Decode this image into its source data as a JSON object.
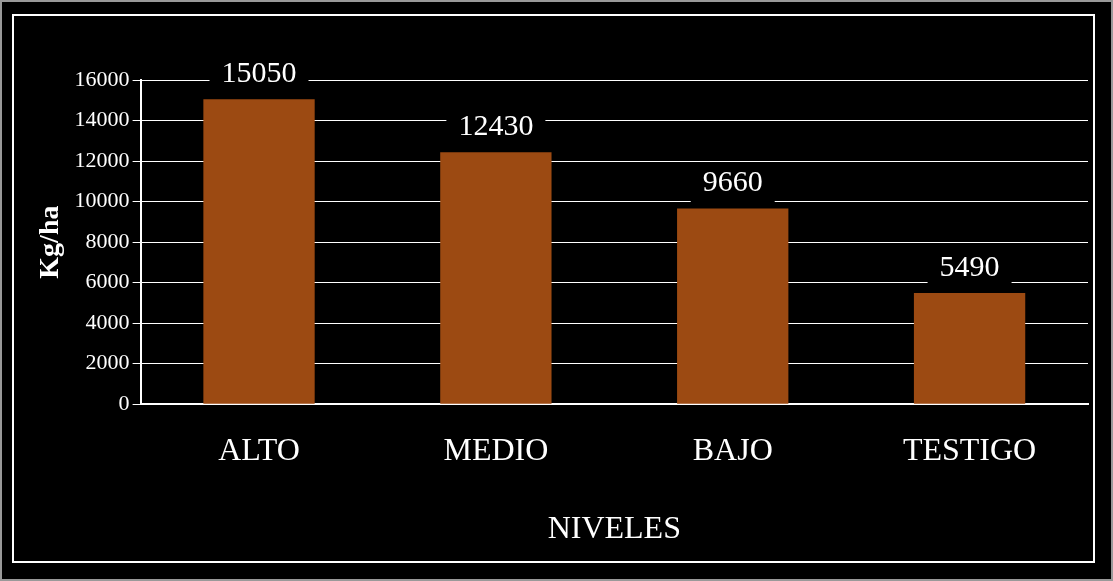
{
  "chart_data": {
    "type": "bar",
    "xlabel": "NIVELES",
    "ylabel": "Kg/ha",
    "categories": [
      "ALTO",
      "MEDIO",
      "BAJO",
      "TESTIGO"
    ],
    "values": [
      15050,
      12430,
      9660,
      5490
    ],
    "color": "#9c4a12",
    "ylim": [
      0,
      16000
    ],
    "yticks": [
      0,
      2000,
      4000,
      6000,
      8000,
      10000,
      12000,
      14000,
      16000
    ],
    "grid": "y",
    "data_labels": true,
    "legend": false
  }
}
